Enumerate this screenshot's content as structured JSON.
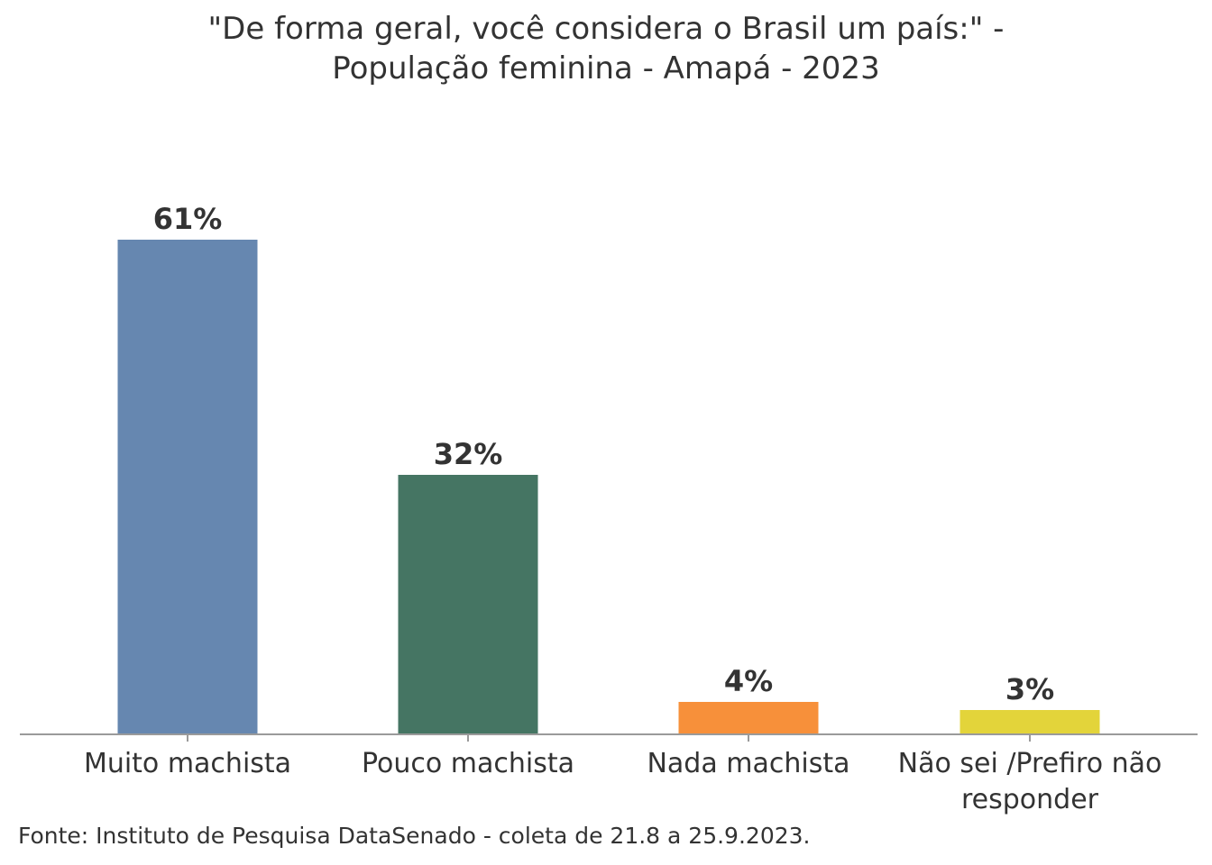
{
  "chart_data": {
    "type": "bar",
    "title_lines": [
      "\"De forma geral, você considera o Brasil um país:\" -",
      "População feminina - Amapá - 2023"
    ],
    "categories": [
      {
        "lines": [
          "Muito machista"
        ]
      },
      {
        "lines": [
          "Pouco machista"
        ]
      },
      {
        "lines": [
          "Nada machista"
        ]
      },
      {
        "lines": [
          "Não sei /Prefiro não",
          "responder"
        ]
      }
    ],
    "values": [
      61,
      32,
      4,
      3
    ],
    "value_labels": [
      "61%",
      "32%",
      "4%",
      "3%"
    ],
    "colors": [
      "#6687b0",
      "#457563",
      "#f7903a",
      "#e3d43a"
    ],
    "ylim": [
      0,
      61
    ],
    "grid": false,
    "legend": "none"
  },
  "source": "Fonte: Instituto de Pesquisa DataSenado - coleta de 21.8 a 25.9.2023."
}
